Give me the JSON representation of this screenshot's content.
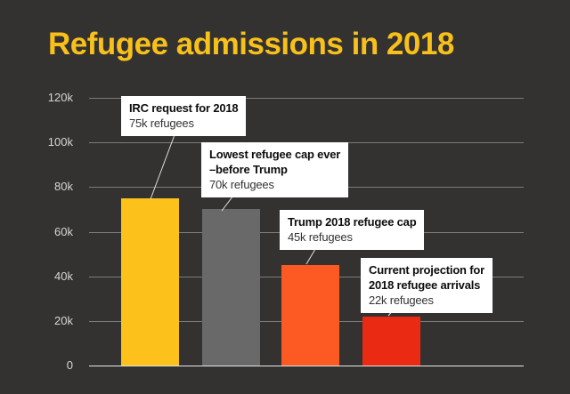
{
  "title": "Refugee admissions in 2018",
  "colors": {
    "background": "#333231",
    "title": "#F8C01A",
    "gridline": "#7c7c7c",
    "baseline": "#e6e6e6",
    "tick_label": "#d6d6d6",
    "note_background": "#ffffff",
    "note_text": "#111111",
    "leader_line": "#e0e0e0"
  },
  "chart_data": {
    "type": "bar",
    "title": "Refugee admissions in 2018",
    "categories": [
      "IRC request for 2018",
      "Lowest refugee cap ever –before Trump",
      "Trump 2018 refugee cap",
      "Current projection for 2018 refugee arrivals"
    ],
    "values": [
      75000,
      70000,
      45000,
      22000
    ],
    "value_labels": [
      "75k refugees",
      "70k refugees",
      "45k refugees",
      "22k refugees"
    ],
    "bar_colors": [
      "#FCC21B",
      "#696969",
      "#FC5A22",
      "#EB2A14"
    ],
    "slugs": [
      "irc-request-2018",
      "lowest-cap-before-trump",
      "trump-2018-cap",
      "current-projection-2018"
    ],
    "xlabel": "",
    "ylabel": "",
    "ylim": [
      0,
      120000
    ],
    "ytick_labels": [
      "120k",
      "100k",
      "80k",
      "60k",
      "40k",
      "20k",
      "0"
    ],
    "grid": true,
    "legend": false,
    "annotations": [
      {
        "lines_bold": [
          "IRC request for 2018"
        ],
        "value_label": "75k refugees"
      },
      {
        "lines_bold": [
          "Lowest refugee cap ever",
          "–before Trump"
        ],
        "value_label": "70k refugees"
      },
      {
        "lines_bold": [
          "Trump 2018 refugee cap"
        ],
        "value_label": "45k refugees"
      },
      {
        "lines_bold": [
          "Current projection for",
          "2018 refugee arrivals"
        ],
        "value_label": "22k refugees"
      }
    ]
  }
}
